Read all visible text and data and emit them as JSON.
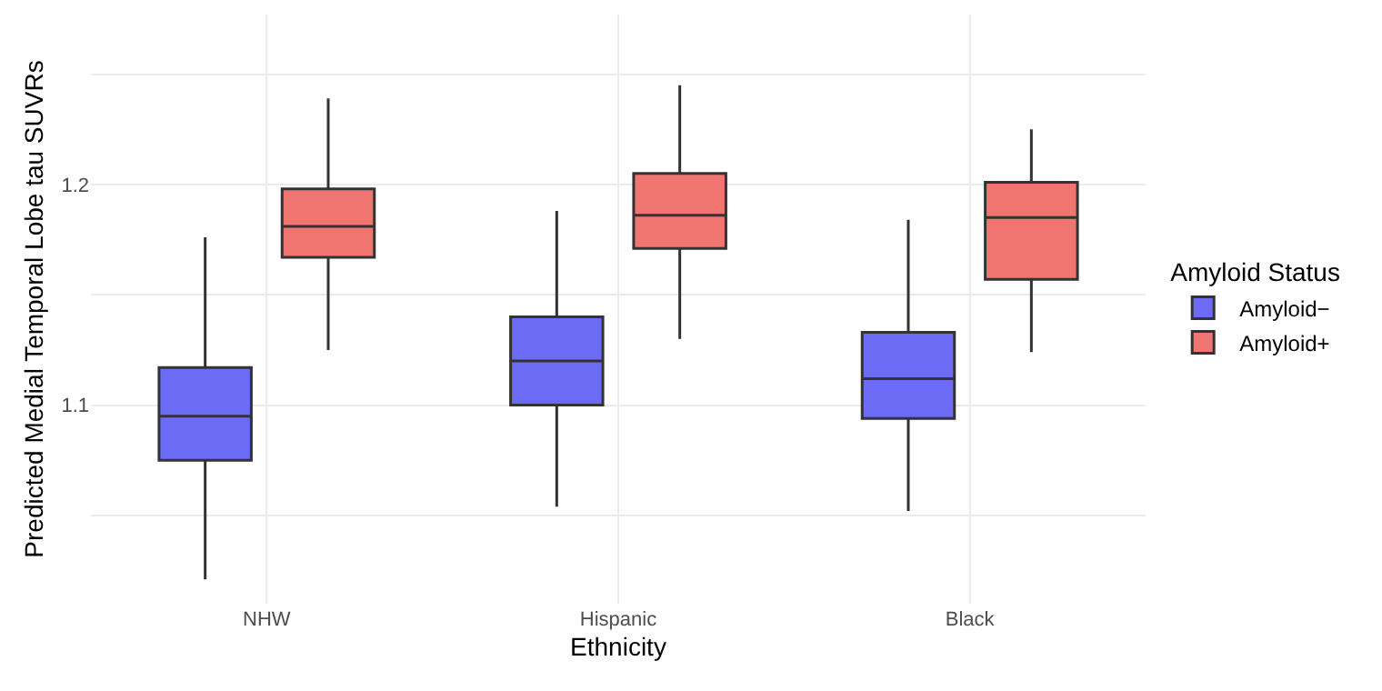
{
  "chart_data": {
    "type": "box",
    "xlabel": "Ethnicity",
    "ylabel": "Predicted Medial Temporal Lobe tau SUVRs",
    "legend_title": "Amyloid Status",
    "legend": "right",
    "grid": true,
    "categories": [
      "NHW",
      "Hispanic",
      "Black"
    ],
    "ylim": [
      1.01,
      1.277
    ],
    "yticks": [
      {
        "value": 1.05,
        "label": null
      },
      1.1,
      {
        "value": 1.15,
        "label": null
      },
      1.2,
      {
        "value": 1.25,
        "label": null
      }
    ],
    "series": [
      {
        "name": "Amyloid−",
        "color": "#6b6bf5",
        "boxes": [
          {
            "low": 1.021,
            "q1": 1.075,
            "median": 1.095,
            "q3": 1.117,
            "high": 1.176
          },
          {
            "low": 1.054,
            "q1": 1.1,
            "median": 1.12,
            "q3": 1.14,
            "high": 1.188
          },
          {
            "low": 1.052,
            "q1": 1.094,
            "median": 1.112,
            "q3": 1.133,
            "high": 1.184
          }
        ]
      },
      {
        "name": "Amyloid+",
        "color": "#f07470",
        "boxes": [
          {
            "low": 1.125,
            "q1": 1.167,
            "median": 1.181,
            "q3": 1.198,
            "high": 1.239
          },
          {
            "low": 1.13,
            "q1": 1.171,
            "median": 1.186,
            "q3": 1.205,
            "high": 1.245
          },
          {
            "low": 1.124,
            "q1": 1.157,
            "median": 1.185,
            "q3": 1.201,
            "high": 1.225
          }
        ]
      }
    ]
  }
}
